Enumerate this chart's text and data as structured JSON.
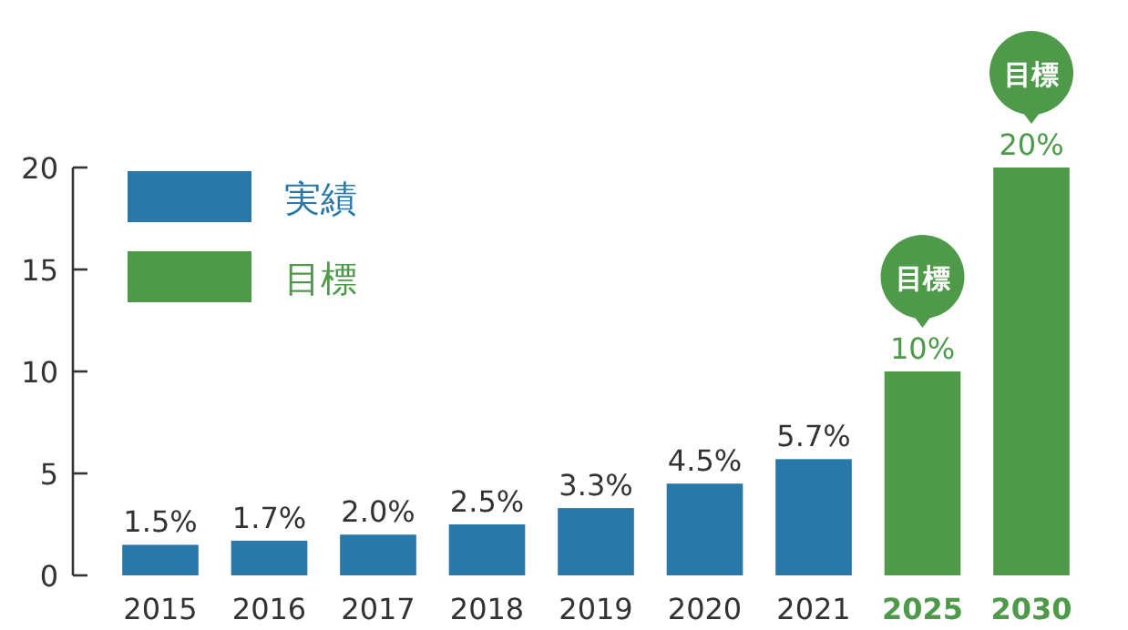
{
  "chart_data": {
    "type": "bar",
    "categories": [
      "2015",
      "2016",
      "2017",
      "2018",
      "2019",
      "2020",
      "2021",
      "2025",
      "2030"
    ],
    "series": [
      {
        "name": "実績",
        "color": "#2a78a8",
        "values": [
          1.5,
          1.7,
          2.0,
          2.5,
          3.3,
          4.5,
          5.7,
          null,
          null
        ],
        "value_labels": [
          "1.5%",
          "1.7%",
          "2.0%",
          "2.5%",
          "3.3%",
          "4.5%",
          "5.7%",
          null,
          null
        ]
      },
      {
        "name": "目標",
        "color": "#4e9a4a",
        "values": [
          null,
          null,
          null,
          null,
          null,
          null,
          null,
          10,
          20
        ],
        "value_labels": [
          null,
          null,
          null,
          null,
          null,
          null,
          null,
          "10%",
          "20%"
        ]
      }
    ],
    "annotations": [
      {
        "text": "目標",
        "x": "2025",
        "y": 10
      },
      {
        "text": "目標",
        "x": "2030",
        "y": 20
      }
    ],
    "ylim": [
      0,
      20
    ],
    "yticks": [
      0,
      5,
      10,
      15,
      20
    ],
    "grid": false,
    "legend": "top left"
  }
}
